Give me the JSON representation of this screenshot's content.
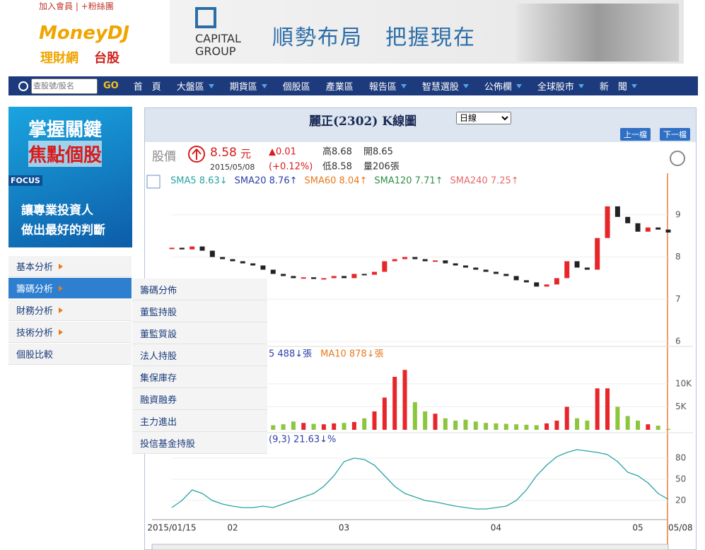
{
  "header": {
    "links": "加入會員 | +粉絲團",
    "logo": "MoneyDJ",
    "logo_sub": "理財網",
    "logo_section": "台股",
    "banner_brand_1": "CAPITAL",
    "banner_brand_2": "GROUP",
    "banner_slogan": "順勢布局　把握現在"
  },
  "nav": {
    "search_placeholder": "查股號/股名",
    "go": "GO",
    "items": [
      "首　頁",
      "大盤區",
      "期貨區",
      "個股區",
      "產業區",
      "報告區",
      "智慧選股",
      "公佈欄",
      "全球股市",
      "新　聞"
    ],
    "has_dropdown": [
      false,
      true,
      true,
      false,
      false,
      true,
      true,
      true,
      true,
      true
    ]
  },
  "ad": {
    "line1": "掌握關鍵",
    "line2": "焦點個股",
    "tag": "FOCUS",
    "line3": "讓專業投資人",
    "line4": "做出最好的判斷"
  },
  "sidebar": {
    "items": [
      "基本分析",
      "籌碼分析",
      "財務分析",
      "技術分析",
      "個股比較"
    ],
    "selected": 1,
    "has_arrow": [
      true,
      true,
      true,
      true,
      false
    ]
  },
  "submenu": {
    "items": [
      "籌碼分佈",
      "董監持股",
      "董監質設",
      "法人持股",
      "集保庫存",
      "融資融券",
      "主力進出",
      "投信基金持股"
    ]
  },
  "panel": {
    "title": "麗正(2302)  K線圖",
    "period": "日線",
    "prev": "上一檔",
    "next": "下一檔",
    "price_label": "股價",
    "price": "8.58",
    "price_unit": "元",
    "date": "2015/05/08",
    "change": "▲0.01",
    "change_pct": "(+0.12%)",
    "high": "高8.68",
    "open": "開8.65",
    "low": "低8.58",
    "volume": "量206張",
    "sma_legend": [
      {
        "text": "SMA5 8.63↓",
        "color": "#2aa3a3"
      },
      {
        "text": "SMA20 8.76↑",
        "color": "#2b3fa8"
      },
      {
        "text": "SMA60 8.04↑",
        "color": "#e8791e"
      },
      {
        "text": "SMA120 7.71↑",
        "color": "#2f8f45"
      },
      {
        "text": "SMA240 7.25↑",
        "color": "#e86a6a"
      }
    ],
    "vol_legend": [
      {
        "text": "5 488↓張",
        "color": "#2b3fa8"
      },
      {
        "text": "MA10 878↓張",
        "color": "#e8791e"
      }
    ],
    "kd_legend": "(9,3) 21.63↓%"
  },
  "chart_data": {
    "type": "candlestick",
    "categories": [
      "2015/01/15",
      null,
      null,
      null,
      null,
      null,
      "02",
      null,
      null,
      null,
      null,
      null,
      null,
      null,
      null,
      null,
      null,
      "03",
      null,
      null,
      null,
      null,
      null,
      null,
      null,
      null,
      null,
      null,
      null,
      null,
      null,
      null,
      "04",
      null,
      null,
      null,
      null,
      null,
      null,
      null,
      null,
      null,
      null,
      null,
      null,
      null,
      "05",
      null,
      null,
      "05/08"
    ],
    "close": [
      8.22,
      8.18,
      8.25,
      8.15,
      8.0,
      7.95,
      7.9,
      7.85,
      7.8,
      7.7,
      7.6,
      7.55,
      7.5,
      7.52,
      7.48,
      7.5,
      7.55,
      7.5,
      7.6,
      7.58,
      7.65,
      7.9,
      7.95,
      8.0,
      7.95,
      7.9,
      7.92,
      7.85,
      7.8,
      7.75,
      7.7,
      7.65,
      7.6,
      7.55,
      7.45,
      7.4,
      7.3,
      7.35,
      7.5,
      7.9,
      7.75,
      7.7,
      8.45,
      9.2,
      8.95,
      8.8,
      8.6,
      8.7,
      8.65,
      8.58
    ],
    "volume": [
      1500,
      1200,
      2000,
      1800,
      1500,
      1300,
      2500,
      2200,
      1600,
      1400,
      1000,
      1200,
      1800,
      1500,
      1300,
      1200,
      1400,
      1500,
      1700,
      2500,
      4000,
      7000,
      11500,
      13000,
      6000,
      4000,
      3500,
      2500,
      2000,
      2200,
      1800,
      1500,
      1400,
      1300,
      1200,
      1100,
      1000,
      1400,
      2000,
      5000,
      2500,
      2000,
      9000,
      9000,
      5000,
      3000,
      2000,
      1200,
      900,
      206
    ],
    "k": [
      10,
      20,
      35,
      30,
      20,
      15,
      12,
      10,
      10,
      12,
      10,
      15,
      20,
      25,
      30,
      40,
      55,
      75,
      80,
      78,
      70,
      55,
      40,
      30,
      25,
      20,
      18,
      15,
      12,
      10,
      8,
      8,
      10,
      12,
      20,
      35,
      55,
      70,
      82,
      88,
      92,
      90,
      88,
      85,
      75,
      60,
      55,
      45,
      30,
      21.63
    ],
    "ylim": [
      5.9,
      9.6
    ],
    "yticks": [
      9,
      8,
      7,
      6
    ],
    "vol_ylim": [
      0,
      13500
    ],
    "vol_yticks": [
      {
        "value": 10000,
        "label": "10K"
      },
      {
        "value": 5000,
        "label": "5K"
      }
    ],
    "kd_ylim": [
      0,
      100
    ],
    "kd_yticks": [
      80,
      50,
      20
    ],
    "up_color": "#e8262a",
    "down_color": "#222222",
    "vol_up_color": "#e8262a",
    "vol_down_color": "#8cc63f",
    "k_color": "#2aa3a3"
  }
}
